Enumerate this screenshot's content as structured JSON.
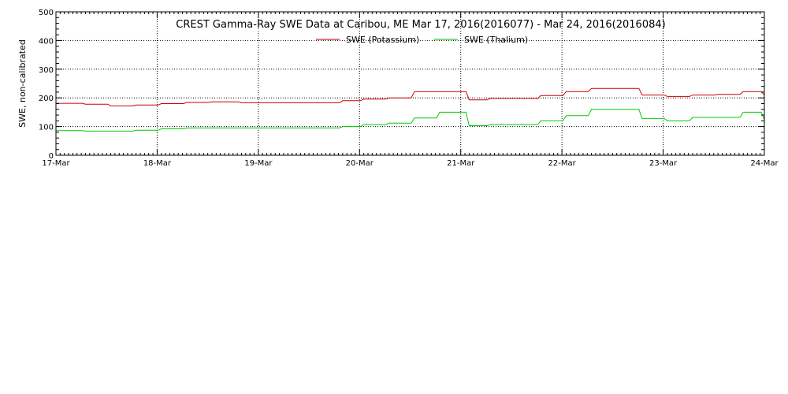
{
  "chart_data": {
    "type": "line",
    "title": "CREST Gamma-Ray SWE Data at Caribou, ME   Mar 17, 2016(2016077) - Mar 24, 2016(2016084)",
    "xlabel": "",
    "ylabel": "SWE, non-calibrated",
    "x_tick_labels": [
      "17-Mar",
      "18-Mar",
      "19-Mar",
      "20-Mar",
      "21-Mar",
      "22-Mar",
      "23-Mar",
      "24-Mar"
    ],
    "y_ticks": [
      0,
      100,
      200,
      300,
      400,
      500
    ],
    "ylim": [
      0,
      500
    ],
    "grid": true,
    "legend_position": "top-center",
    "series": [
      {
        "name": "SWE (Potassium)",
        "color": "#cc0000",
        "x": [
          "2016-03-17 00:00",
          "2016-03-17 07:00",
          "2016-03-17 13:00",
          "2016-03-17 19:00",
          "2016-03-18 01:00",
          "2016-03-18 07:00",
          "2016-03-18 13:00",
          "2016-03-18 20:00",
          "2016-03-19 02:00",
          "2016-03-19 08:00",
          "2016-03-19 14:00",
          "2016-03-19 20:00",
          "2016-03-20 01:00",
          "2016-03-20 07:00",
          "2016-03-20 13:00",
          "2016-03-20 19:00",
          "2016-03-21 02:00",
          "2016-03-21 07:00",
          "2016-03-21 13:00",
          "2016-03-21 19:00",
          "2016-03-22 01:00",
          "2016-03-22 07:00",
          "2016-03-22 13:00",
          "2016-03-22 19:00",
          "2016-03-23 01:00",
          "2016-03-23 07:00",
          "2016-03-23 13:00",
          "2016-03-23 19:00",
          "2016-03-24 00:00"
        ],
        "values": [
          181,
          178,
          172,
          175,
          180,
          184,
          186,
          183,
          183,
          183,
          183,
          190,
          196,
          200,
          222,
          222,
          193,
          198,
          198,
          208,
          222,
          233,
          233,
          210,
          205,
          210,
          212,
          222,
          210
        ]
      },
      {
        "name": "SWE (Thalium)",
        "color": "#00cc00",
        "x": [
          "2016-03-17 00:00",
          "2016-03-17 07:00",
          "2016-03-17 13:00",
          "2016-03-17 19:00",
          "2016-03-18 01:00",
          "2016-03-18 07:00",
          "2016-03-18 13:00",
          "2016-03-18 20:00",
          "2016-03-19 02:00",
          "2016-03-19 08:00",
          "2016-03-19 14:00",
          "2016-03-19 20:00",
          "2016-03-20 01:00",
          "2016-03-20 07:00",
          "2016-03-20 13:00",
          "2016-03-20 19:00",
          "2016-03-21 02:00",
          "2016-03-21 07:00",
          "2016-03-21 13:00",
          "2016-03-21 19:00",
          "2016-03-22 01:00",
          "2016-03-22 07:00",
          "2016-03-22 13:00",
          "2016-03-22 19:00",
          "2016-03-23 01:00",
          "2016-03-23 07:00",
          "2016-03-23 13:00",
          "2016-03-23 19:00",
          "2016-03-24 00:00"
        ],
        "values": [
          86,
          84,
          84,
          87,
          92,
          95,
          95,
          95,
          95,
          95,
          95,
          100,
          107,
          112,
          130,
          150,
          103,
          107,
          107,
          120,
          138,
          160,
          160,
          128,
          120,
          132,
          132,
          150,
          124
        ]
      }
    ]
  }
}
